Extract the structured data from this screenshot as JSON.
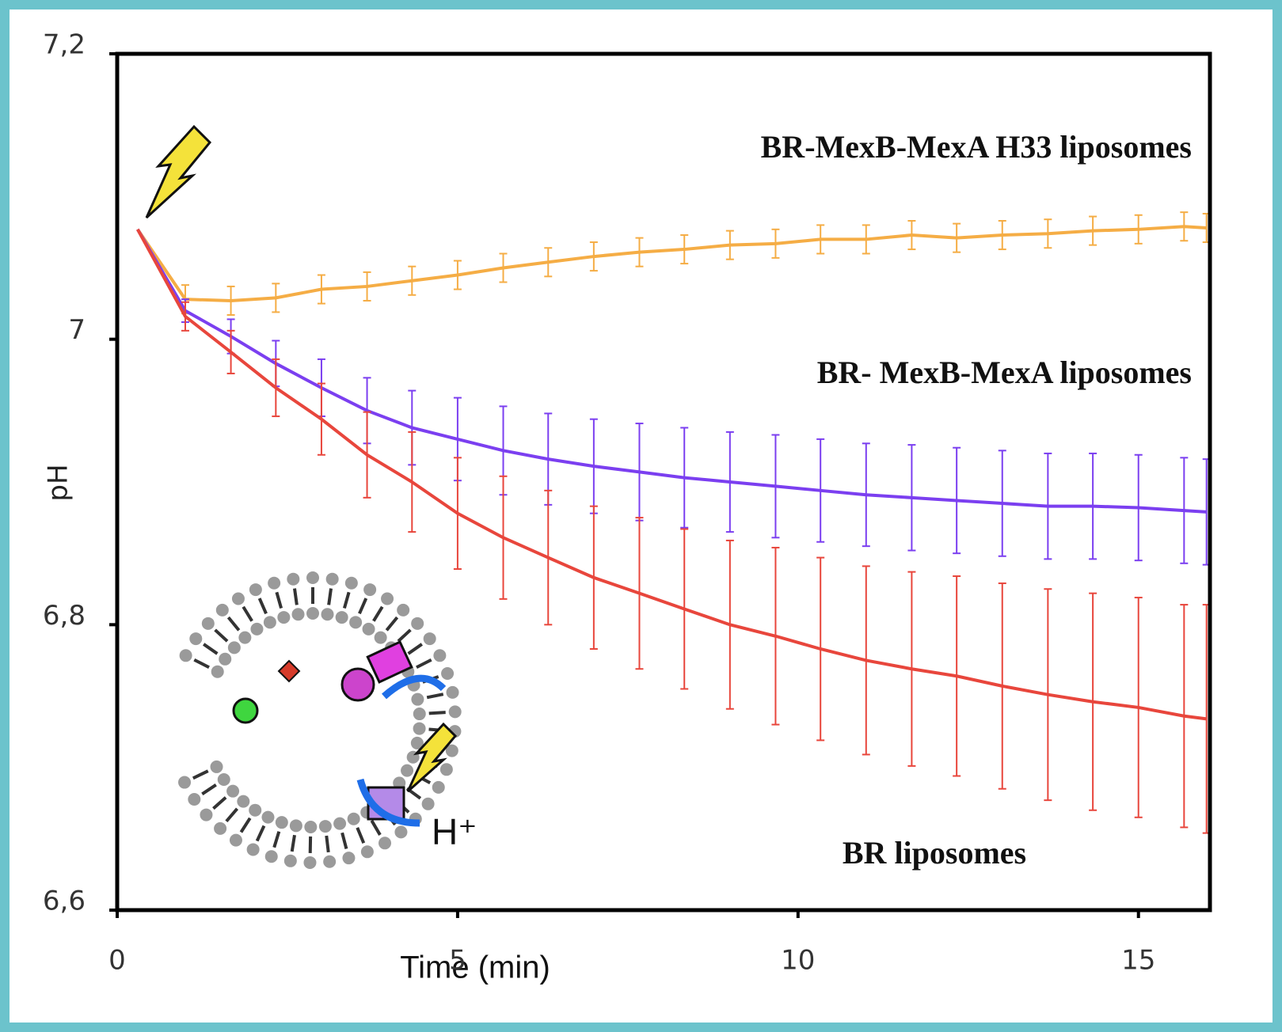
{
  "chart_data": {
    "type": "line",
    "x_label": "Time (min)",
    "y_label": "pH",
    "x": [
      0.3,
      1,
      1.67,
      2.33,
      3,
      3.67,
      4.33,
      5,
      5.67,
      6.33,
      7,
      7.67,
      8.33,
      9,
      9.67,
      10.33,
      11,
      11.67,
      12.33,
      13,
      13.67,
      14.33,
      15,
      15.67,
      16
    ],
    "series": [
      {
        "name": "BR-MexB-MexA H33 liposomes",
        "color": "#f5ad45",
        "values": [
          7.077,
          7.028,
          7.027,
          7.029,
          7.035,
          7.037,
          7.041,
          7.045,
          7.05,
          7.054,
          7.058,
          7.061,
          7.063,
          7.066,
          7.067,
          7.07,
          7.07,
          7.073,
          7.071,
          7.073,
          7.074,
          7.076,
          7.077,
          7.079,
          7.078
        ],
        "errors": [
          0,
          0.01,
          0.01,
          0.01,
          0.01,
          0.01,
          0.01,
          0.01,
          0.01,
          0.01,
          0.01,
          0.01,
          0.01,
          0.01,
          0.01,
          0.01,
          0.01,
          0.01,
          0.01,
          0.01,
          0.01,
          0.01,
          0.01,
          0.01,
          0.01
        ]
      },
      {
        "name": "BR- MexB-MexA liposomes",
        "color": "#7b3ff0",
        "values": [
          7.077,
          7.02,
          7.002,
          6.983,
          6.966,
          6.95,
          6.938,
          6.93,
          6.922,
          6.916,
          6.911,
          6.907,
          6.903,
          6.9,
          6.897,
          6.894,
          6.891,
          6.889,
          6.887,
          6.885,
          6.883,
          6.883,
          6.882,
          6.88,
          6.879
        ],
        "errors": [
          0,
          0.008,
          0.012,
          0.016,
          0.02,
          0.023,
          0.026,
          0.029,
          0.031,
          0.032,
          0.033,
          0.034,
          0.035,
          0.035,
          0.036,
          0.036,
          0.036,
          0.037,
          0.037,
          0.037,
          0.037,
          0.037,
          0.037,
          0.037,
          0.037
        ]
      },
      {
        "name": "BR liposomes",
        "color": "#e8463c",
        "values": [
          7.077,
          7.016,
          6.991,
          6.966,
          6.944,
          6.919,
          6.9,
          6.878,
          6.861,
          6.847,
          6.833,
          6.822,
          6.811,
          6.8,
          6.792,
          6.783,
          6.775,
          6.769,
          6.764,
          6.757,
          6.751,
          6.746,
          6.742,
          6.736,
          6.734
        ],
        "errors": [
          0,
          0.01,
          0.015,
          0.02,
          0.025,
          0.03,
          0.035,
          0.039,
          0.043,
          0.047,
          0.05,
          0.053,
          0.056,
          0.059,
          0.062,
          0.064,
          0.066,
          0.068,
          0.07,
          0.072,
          0.074,
          0.076,
          0.077,
          0.078,
          0.08
        ]
      }
    ],
    "xlim": [
      0,
      16.05
    ],
    "xticks": [
      0,
      5,
      10,
      15
    ],
    "ylim": [
      6.6,
      7.2
    ],
    "yticks": [
      {
        "value": 6.6,
        "label": "6,6"
      },
      {
        "value": 6.8,
        "label": "6,8"
      },
      7,
      {
        "value": 7.2,
        "label": "7,2"
      }
    ],
    "inset_label": "H⁺"
  }
}
